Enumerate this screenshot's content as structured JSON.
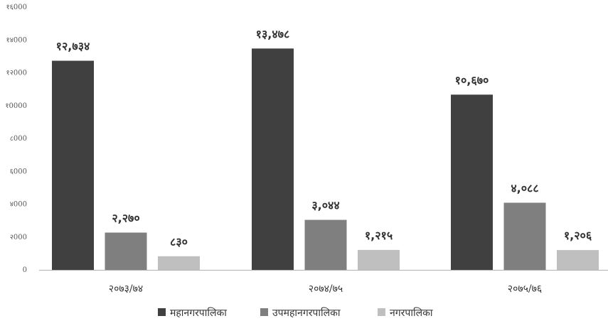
{
  "chart_data": {
    "type": "bar",
    "categories": [
      "२०७३/७४",
      "२०७४/७५",
      "२०७५/७६"
    ],
    "series": [
      {
        "name": "महानगरपालिका",
        "values": [
          12734,
          13478,
          10670
        ],
        "labels": [
          "१२,७३४",
          "१३,४७८",
          "१०,६७०"
        ],
        "color": "#404040"
      },
      {
        "name": "उपमहानगरपालिका",
        "values": [
          2270,
          3044,
          4088
        ],
        "labels": [
          "२,२७०",
          "३,०४४",
          "४,०८८"
        ],
        "color": "#7f7f7f"
      },
      {
        "name": "नगरपालिका",
        "values": [
          830,
          1215,
          1206
        ],
        "labels": [
          "८३०",
          "१,२१५",
          "१,२०६"
        ],
        "color": "#bfbfbf"
      }
    ],
    "ylim": [
      0,
      16000
    ],
    "yticks": [
      0,
      2000,
      4000,
      6000,
      8000,
      10000,
      12000,
      14000,
      16000
    ],
    "ytick_labels": [
      "0",
      "२000",
      "४000",
      "६000",
      "८000",
      "१0000",
      "१२000",
      "१४000",
      "१६000"
    ],
    "grid": false,
    "legend_position": "bottom",
    "title": "",
    "xlabel": "",
    "ylabel": ""
  }
}
